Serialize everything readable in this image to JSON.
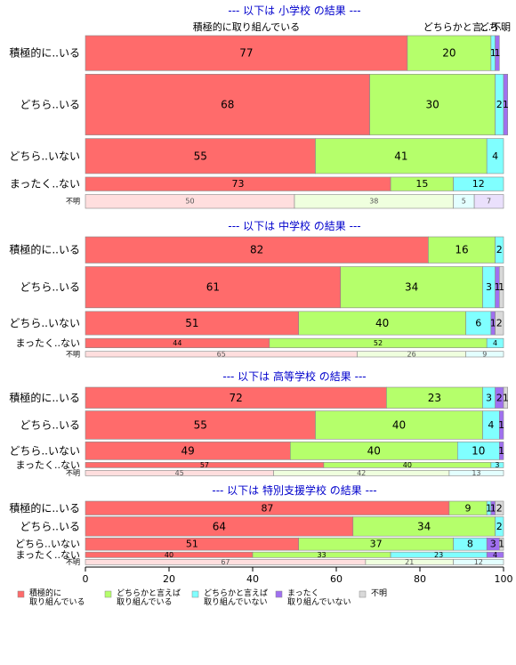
{
  "chart_data": {
    "type": "bar",
    "orientation": "horizontal",
    "stacked": "percent",
    "xlim": [
      0,
      100
    ],
    "xticks": [
      0,
      20,
      40,
      60,
      80,
      100
    ],
    "categories": [
      "積極的に取り組んでいる",
      "どちらかと言えば取り組んでいる",
      "どちらかと言えば取り組んでいない",
      "まったく取り組んでいない",
      "不明"
    ],
    "category_headers": [
      "積極的に取り組んでいる",
      "どちらかと言...",
      "どち...",
      "不明"
    ],
    "colors": [
      "#ff6b6b",
      "#b5ff6b",
      "#80ffff",
      "#a070f0",
      "#d9d9d9"
    ],
    "legend": [
      {
        "line1": "積極的に",
        "line2": "取り組んでいる"
      },
      {
        "line1": "どちらかと言えば",
        "line2": "取り組んでいる"
      },
      {
        "line1": "どちらかと言えば",
        "line2": "取り組んでいない"
      },
      {
        "line1": "まったく",
        "line2": "取り組んでいない"
      },
      {
        "line1": "不明",
        "line2": ""
      }
    ],
    "groups": [
      {
        "title": "--- 以下は 小学校 の結果 ---",
        "rows": [
          {
            "label": "積極的に..いる",
            "values": [
              77,
              20,
              1,
              1,
              0
            ],
            "weight": 38
          },
          {
            "label": "どちら..いる",
            "values": [
              68,
              30,
              2,
              1,
              0
            ],
            "weight": 66
          },
          {
            "label": "どちら..いない",
            "values": [
              55,
              41,
              4,
              0,
              0
            ],
            "weight": 38
          },
          {
            "label": "まったく..ない",
            "values": [
              73,
              15,
              12,
              0,
              0
            ],
            "weight": 15
          },
          {
            "label": "不明",
            "values": [
              50,
              38,
              5,
              7,
              0
            ],
            "weight": 15,
            "faded": true
          }
        ]
      },
      {
        "title": "--- 以下は 中学校 の結果 ---",
        "rows": [
          {
            "label": "積極的に..いる",
            "values": [
              82,
              16,
              2,
              0,
              0
            ],
            "weight": 28
          },
          {
            "label": "どちら..いる",
            "values": [
              61,
              34,
              3,
              1,
              1
            ],
            "weight": 44
          },
          {
            "label": "どちら..いない",
            "values": [
              51,
              40,
              6,
              1,
              2
            ],
            "weight": 25
          },
          {
            "label": "まったく..ない",
            "values": [
              44,
              52,
              4,
              0,
              0
            ],
            "weight": 10
          },
          {
            "label": "不明",
            "values": [
              65,
              26,
              9,
              0,
              0
            ],
            "weight": 6,
            "faded": true
          }
        ]
      },
      {
        "title": "--- 以下は 高等学校 の結果 ---",
        "rows": [
          {
            "label": "積極的に..いる",
            "values": [
              72,
              23,
              3,
              2,
              1
            ],
            "weight": 20
          },
          {
            "label": "どちら..いる",
            "values": [
              55,
              40,
              4,
              1,
              0
            ],
            "weight": 27
          },
          {
            "label": "どちら..いない",
            "values": [
              49,
              40,
              10,
              1,
              0
            ],
            "weight": 17
          },
          {
            "label": "まったく..ない",
            "values": [
              57,
              40,
              3,
              0,
              0
            ],
            "weight": 5
          },
          {
            "label": "不明",
            "values": [
              45,
              42,
              13,
              0,
              0
            ],
            "weight": 4,
            "faded": true
          }
        ]
      },
      {
        "title": "--- 以下は 特別支援学校 の結果 ---",
        "rows": [
          {
            "label": "積極的に..いる",
            "values": [
              87,
              9,
              1,
              1,
              2
            ],
            "weight": 10
          },
          {
            "label": "どちら..いる",
            "values": [
              64,
              34,
              2,
              0,
              0
            ],
            "weight": 14
          },
          {
            "label": "どちら..いない",
            "values": [
              51,
              37,
              8,
              3,
              1
            ],
            "weight": 9
          },
          {
            "label": "まったく..ない",
            "values": [
              40,
              33,
              23,
              4,
              0
            ],
            "weight": 4
          },
          {
            "label": "不明",
            "values": [
              67,
              21,
              12,
              0,
              0
            ],
            "weight": 3,
            "faded": true
          }
        ]
      }
    ]
  }
}
